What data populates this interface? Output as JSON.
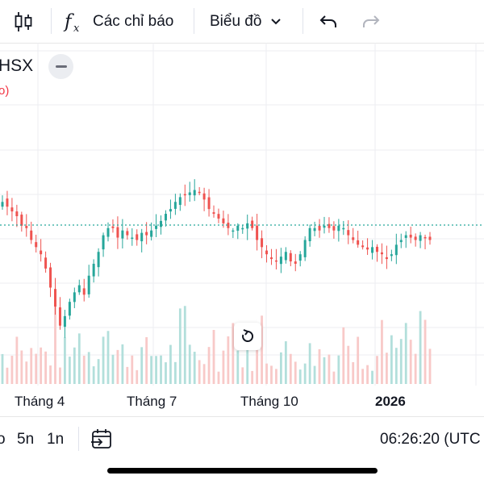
{
  "toolbar": {
    "indicators_label": "Các chỉ báo",
    "chart_type_label": "Biểu đồ"
  },
  "symbol": {
    "name": "HSX",
    "sub": "o)"
  },
  "axis": {
    "x_labels": [
      "Tháng 4",
      "Tháng 7",
      "Tháng 10",
      "2026"
    ]
  },
  "bottom": {
    "range_partial": "o",
    "range_5y": "5n",
    "range_1y": "1n",
    "time": "06:26:20 (UTC"
  },
  "colors": {
    "up": "#26a69a",
    "down": "#ef5350",
    "vol_up": "#b2dfdb",
    "vol_down": "#f8c9c8",
    "grid": "#eceef2",
    "price_line": "#26a69a"
  },
  "icons": [
    "candles-icon",
    "fx-icon",
    "chevron-down-icon",
    "undo-icon",
    "redo-icon",
    "minus-icon",
    "reset-icon",
    "goto-date-icon"
  ],
  "chart_data": {
    "type": "candlestick",
    "x_axis_labels": [
      "Tháng 4",
      "Tháng 7",
      "Tháng 10",
      "2026"
    ],
    "closes": [
      66,
      64,
      62,
      60,
      56,
      55,
      50,
      47,
      44,
      38,
      30,
      22,
      14,
      18,
      24,
      28,
      31,
      27,
      35,
      40,
      45,
      52,
      55,
      55,
      51,
      54,
      52,
      51,
      50,
      53,
      52,
      54,
      56,
      58,
      61,
      63,
      66,
      68,
      69,
      70,
      71,
      70,
      67,
      63,
      61,
      59,
      57,
      55,
      54,
      56,
      55,
      57,
      55,
      50,
      47,
      44,
      42,
      41,
      43,
      45,
      41,
      40,
      44,
      50,
      55,
      55,
      54,
      56,
      55,
      54,
      56,
      55,
      52,
      50,
      48,
      47,
      46,
      47,
      45,
      44,
      42,
      44,
      48,
      50,
      52,
      51,
      50,
      52,
      51,
      50
    ],
    "current_price_fraction": 0.6
  }
}
